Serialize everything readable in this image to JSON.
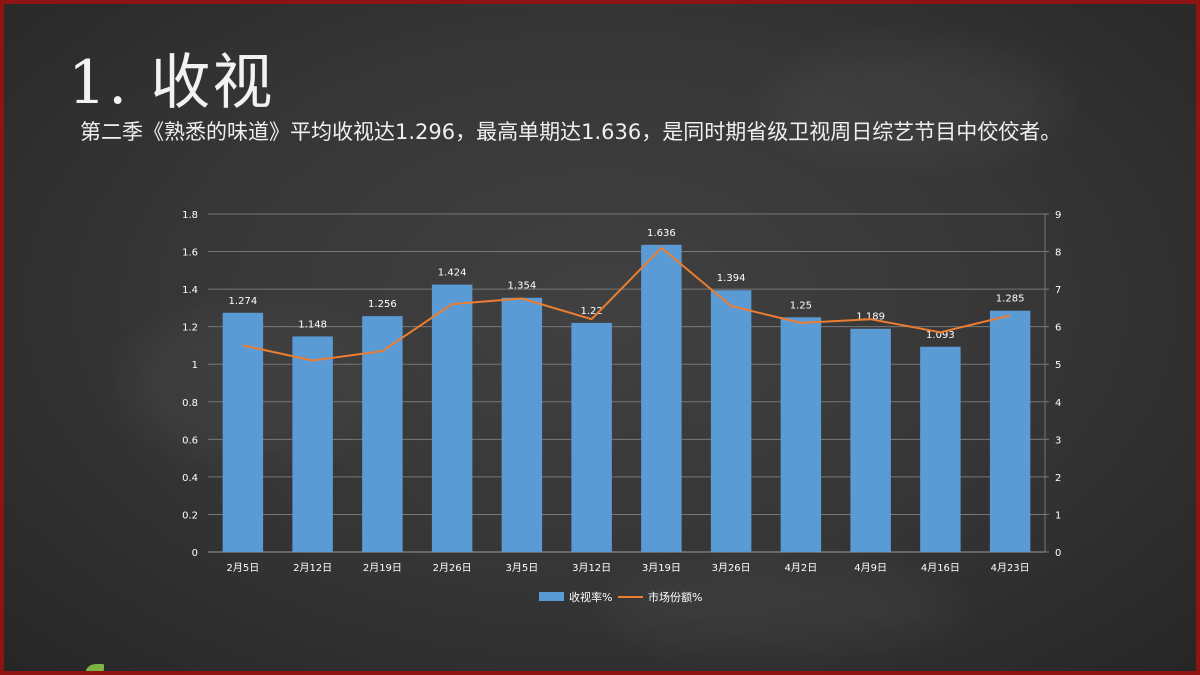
{
  "title": "1. 收视",
  "subtitle": "第二季《熟悉的味道》平均收视达1.296，最高单期达1.636，是同时期省级卫视周日综艺节目中佼佼者。",
  "colors": {
    "bar": "#5b9bd5",
    "line": "#ed7d31",
    "text": "#ffffff",
    "grid": "#777777",
    "background": "#383838",
    "frame": "#8e1414"
  },
  "chart_data": {
    "type": "bar",
    "categories": [
      "2月5日",
      "2月12日",
      "2月19日",
      "2月26日",
      "3月5日",
      "3月12日",
      "3月19日",
      "3月26日",
      "4月2日",
      "4月9日",
      "4月16日",
      "4月23日"
    ],
    "series": [
      {
        "name": "收视率%",
        "type": "bar",
        "axis": "left",
        "values": [
          1.274,
          1.148,
          1.256,
          1.424,
          1.354,
          1.22,
          1.636,
          1.394,
          1.25,
          1.189,
          1.093,
          1.285
        ],
        "labels": [
          "1.274",
          "1.148",
          "1.256",
          "1.424",
          "1.354",
          "1.22",
          "1.636",
          "1.394",
          "1.25",
          "1.189",
          "1.093",
          "1.285"
        ]
      },
      {
        "name": "市场份额%",
        "type": "line",
        "axis": "right",
        "values": [
          5.5,
          5.1,
          5.35,
          6.6,
          6.75,
          6.2,
          8.1,
          6.55,
          6.1,
          6.2,
          5.85,
          6.3
        ]
      }
    ],
    "y_left": {
      "min": 0,
      "max": 1.8,
      "ticks": [
        "0",
        "0.2",
        "0.4",
        "0.6",
        "0.8",
        "1",
        "1.2",
        "1.4",
        "1.6",
        "1.8"
      ]
    },
    "y_right": {
      "min": 0,
      "max": 9,
      "ticks": [
        "0",
        "1",
        "2",
        "3",
        "4",
        "5",
        "6",
        "7",
        "8",
        "9"
      ]
    },
    "grid": true,
    "legend": "bottom"
  }
}
